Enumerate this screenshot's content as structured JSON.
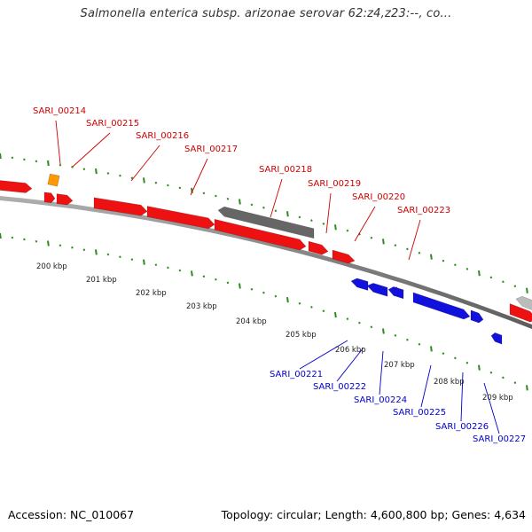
{
  "title": "Salmonella enterica subsp. arizonae serovar 62:z4,z23:--, co...",
  "footer": {
    "accession": "Accession: NC_010067",
    "summary": "Topology: circular; Length: 4,600,800 bp; Genes: 4,634"
  },
  "colors": {
    "forward_gene": "#ee1111",
    "reverse_gene": "#1111dd",
    "other_gene": "#666666",
    "tick": "#2e8b1f",
    "orange_feature": "#ff9900",
    "label_forward": "#cc0000",
    "label_reverse": "#0000cc"
  },
  "ruler": {
    "labels": [
      "200 kbp",
      "201 kbp",
      "202 kbp",
      "203 kbp",
      "204 kbp",
      "205 kbp",
      "206 kbp",
      "207 kbp",
      "208 kbp",
      "209 kbp"
    ]
  },
  "forward_labels": [
    {
      "text": "SARI_00214"
    },
    {
      "text": "SARI_00215"
    },
    {
      "text": "SARI_00216"
    },
    {
      "text": "SARI_00217"
    },
    {
      "text": "SARI_00218"
    },
    {
      "text": "SARI_00219"
    },
    {
      "text": "SARI_00220"
    },
    {
      "text": "SARI_00223"
    }
  ],
  "reverse_labels": [
    {
      "text": "SARI_00221"
    },
    {
      "text": "SARI_00222"
    },
    {
      "text": "SARI_00224"
    },
    {
      "text": "SARI_00225"
    },
    {
      "text": "SARI_00226"
    },
    {
      "text": "SARI_00227"
    }
  ]
}
